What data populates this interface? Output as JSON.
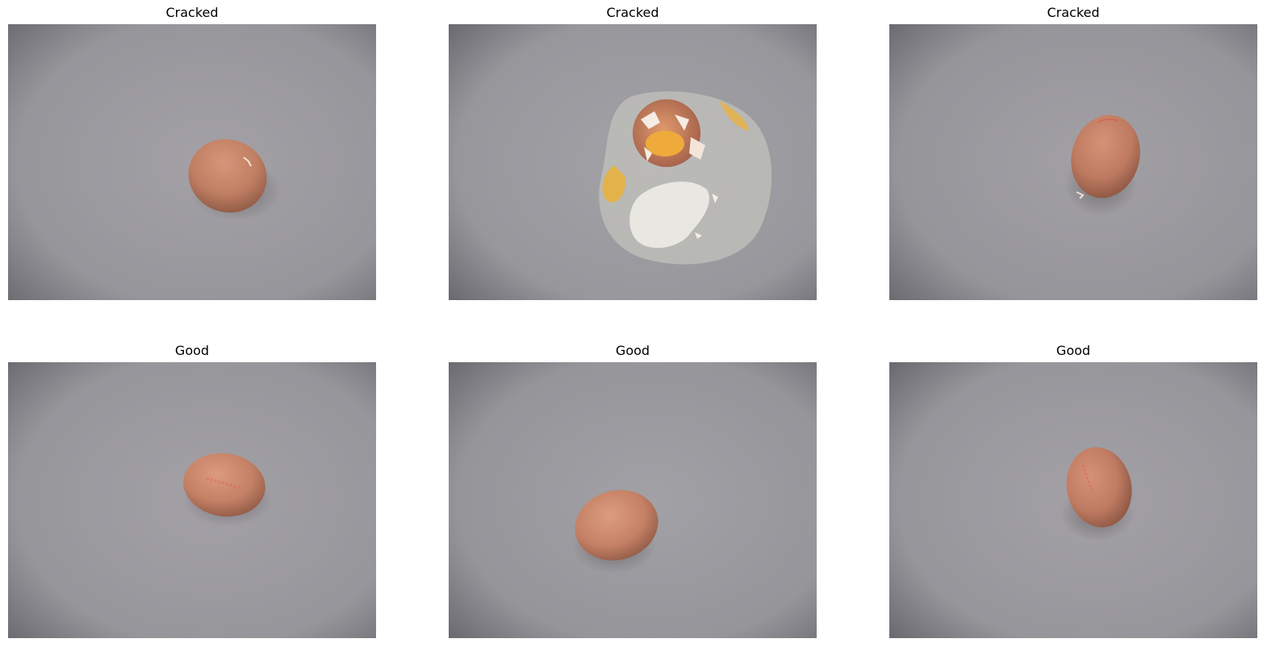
{
  "panels": [
    {
      "title": "Cracked",
      "scene": "egg-with-small-crack"
    },
    {
      "title": "Cracked",
      "scene": "broken-egg-spilled"
    },
    {
      "title": "Cracked",
      "scene": "egg-with-small-crack"
    },
    {
      "title": "Good",
      "scene": "stamped-egg"
    },
    {
      "title": "Good",
      "scene": "plain-egg"
    },
    {
      "title": "Good",
      "scene": "stamped-egg-upright"
    }
  ],
  "colors": {
    "background": "#9a999e",
    "vignette": "#5e5d63",
    "egg_shell": "#c88668",
    "egg_shadow": "#8a5a47",
    "yolk": "#f0b440",
    "albumen": "#d8d6cf"
  }
}
